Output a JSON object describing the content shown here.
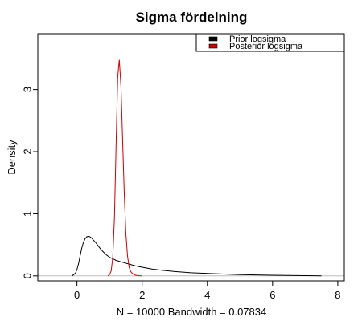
{
  "chart_data": {
    "type": "line",
    "title": "Sigma fördelning",
    "xlabel": "N = 10000   Bandwidth = 0.07834",
    "ylabel": "Density",
    "xlim": [
      -1.2,
      8.2
    ],
    "ylim": [
      -0.08,
      3.9
    ],
    "x_ticks": [
      0,
      2,
      4,
      6,
      8
    ],
    "y_ticks": [
      0,
      1,
      2,
      3
    ],
    "grid": false,
    "baseline_color": "#bebebe",
    "legend": {
      "position": "top-right",
      "entries": [
        {
          "label": "Prior logsigma",
          "color": "#000000"
        },
        {
          "label": "Posterior logsigma",
          "color": "#cc0000"
        }
      ]
    },
    "series": [
      {
        "name": "Prior logsigma",
        "color": "#000000",
        "x": [
          -0.15,
          -0.05,
          0.0,
          0.05,
          0.1,
          0.15,
          0.2,
          0.25,
          0.3,
          0.35,
          0.4,
          0.45,
          0.5,
          0.6,
          0.7,
          0.8,
          0.9,
          1.0,
          1.2,
          1.4,
          1.6,
          1.8,
          2.0,
          2.3,
          2.6,
          3.0,
          3.5,
          4.0,
          4.5,
          5.0,
          5.5,
          6.0,
          6.5,
          7.0,
          7.5
        ],
        "y": [
          0.0,
          0.04,
          0.1,
          0.2,
          0.33,
          0.45,
          0.54,
          0.6,
          0.63,
          0.64,
          0.63,
          0.61,
          0.58,
          0.52,
          0.45,
          0.39,
          0.34,
          0.3,
          0.25,
          0.22,
          0.19,
          0.16,
          0.14,
          0.11,
          0.09,
          0.07,
          0.05,
          0.04,
          0.03,
          0.02,
          0.015,
          0.01,
          0.007,
          0.004,
          0.002
        ]
      },
      {
        "name": "Posterior logsigma",
        "color": "#cc0000",
        "x": [
          0.95,
          1.0,
          1.05,
          1.1,
          1.15,
          1.2,
          1.25,
          1.3,
          1.35,
          1.4,
          1.45,
          1.5,
          1.55,
          1.6,
          1.65,
          1.7,
          1.75,
          1.8,
          1.9,
          2.0
        ],
        "y": [
          0.0,
          0.02,
          0.08,
          0.3,
          0.95,
          2.1,
          3.2,
          3.48,
          3.05,
          2.2,
          1.35,
          0.7,
          0.32,
          0.14,
          0.07,
          0.04,
          0.02,
          0.01,
          0.003,
          0.0
        ]
      }
    ]
  }
}
